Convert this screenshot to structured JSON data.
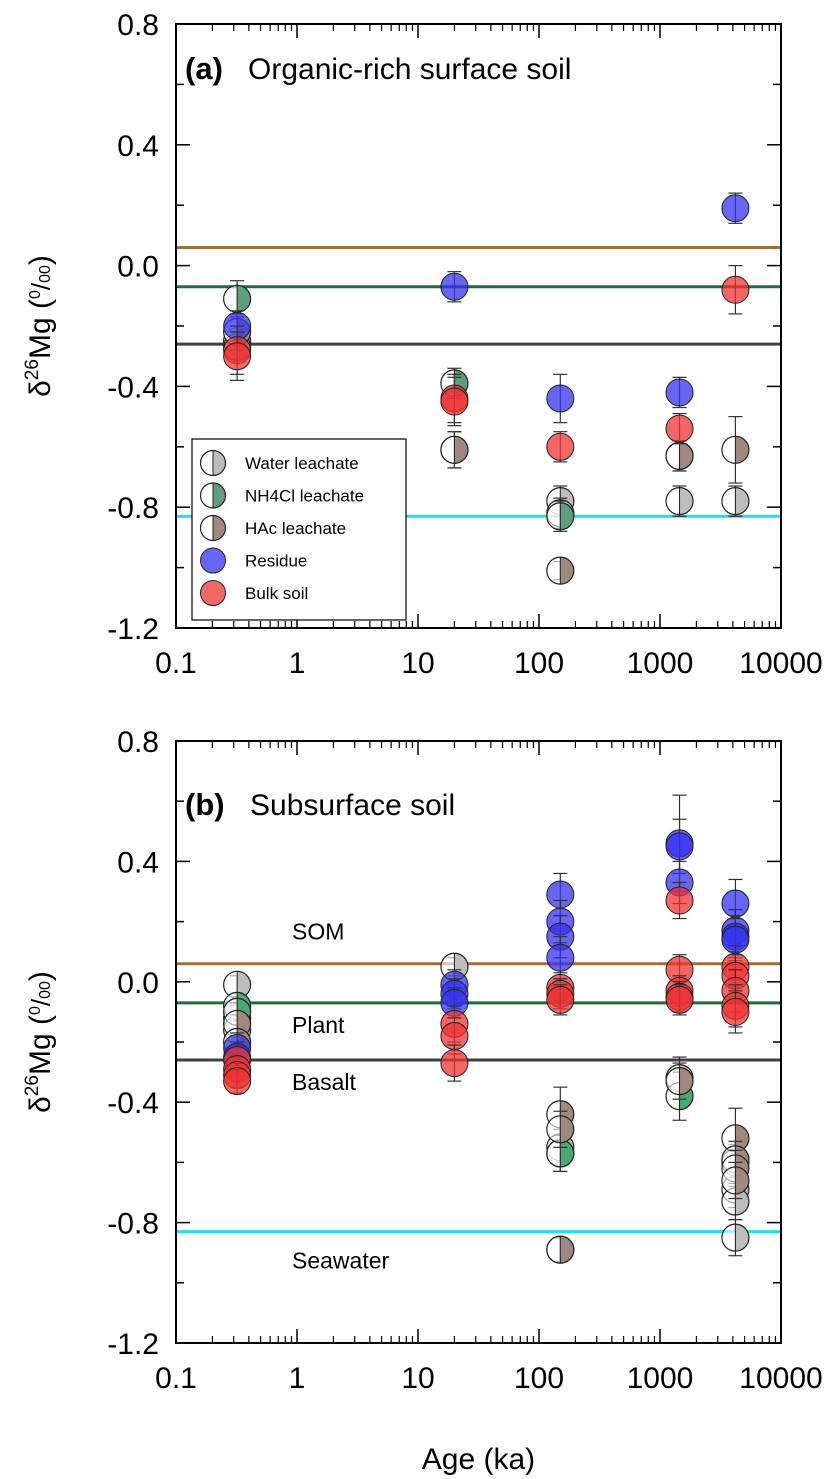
{
  "chart_data": [
    {
      "type": "scatter",
      "panel_letter": "(a)",
      "title": "Organic-rich surface soil",
      "xlabel": "",
      "ylabel": "δ26Mg (0/00)",
      "x_scale": "log",
      "xlim": [
        0.1,
        10000
      ],
      "ylim": [
        -1.2,
        0.8
      ],
      "x_ticks": [
        "0.1",
        "1",
        "10",
        "100",
        "1000",
        "10000"
      ],
      "y_ticks": [
        "0.8",
        "0.4",
        "0.0",
        "-0.4",
        "-0.8",
        "-1.2"
      ],
      "grid": false,
      "legend_position": "lower-left",
      "reference_lines": [
        {
          "id": "som",
          "label": "",
          "y": 0.06,
          "color": "#A0703A"
        },
        {
          "id": "plant",
          "label": "",
          "y": -0.07,
          "color": "#1E6E38"
        },
        {
          "id": "basalt",
          "label": "",
          "y": -0.26,
          "color": "#404040"
        },
        {
          "id": "seawater",
          "label": "",
          "y": -0.83,
          "color": "#22DDEE"
        }
      ],
      "series": [
        {
          "name": "Water leachate",
          "marker": "half",
          "color": "#BDBDBD",
          "points": [
            [
              0.32,
              -0.25,
              0.04
            ],
            [
              0.32,
              -0.27,
              0.04
            ],
            [
              20,
              -0.61,
              0.06
            ],
            [
              150,
              -0.78,
              0.05
            ],
            [
              150,
              -0.82,
              0.05
            ],
            [
              1450,
              -0.78,
              0.05
            ],
            [
              4200,
              -0.78,
              0.05
            ]
          ]
        },
        {
          "name": "NH4Cl leachate",
          "marker": "half",
          "color": "#5E9E7A",
          "points": [
            [
              0.32,
              -0.11,
              0.06
            ],
            [
              20,
              -0.39,
              0.05
            ],
            [
              150,
              -0.83,
              0.05
            ],
            [
              1450,
              -0.63,
              0.05
            ]
          ]
        },
        {
          "name": "HAc leachate",
          "marker": "half",
          "color": "#A08880",
          "points": [
            [
              0.32,
              -0.22,
              0.06
            ],
            [
              20,
              -0.61,
              0.06
            ],
            [
              150,
              -1.01,
              0.03
            ],
            [
              1450,
              -0.63,
              0.05
            ],
            [
              4200,
              -0.61,
              0.11
            ]
          ]
        },
        {
          "name": "Residue",
          "marker": "full",
          "color": "#3333EE",
          "points": [
            [
              0.32,
              -0.2,
              0.05
            ],
            [
              20,
              -0.07,
              0.05
            ],
            [
              150,
              -0.44,
              0.08
            ],
            [
              1450,
              -0.42,
              0.05
            ],
            [
              4200,
              0.19,
              0.05
            ]
          ]
        },
        {
          "name": "Bulk soil",
          "marker": "full",
          "color": "#EE3333",
          "points": [
            [
              0.32,
              -0.28,
              0.08
            ],
            [
              0.32,
              -0.3,
              0.08
            ],
            [
              20,
              -0.44,
              0.08
            ],
            [
              20,
              -0.45,
              0.08
            ],
            [
              150,
              -0.6,
              0.05
            ],
            [
              1450,
              -0.54,
              0.05
            ],
            [
              4200,
              -0.08,
              0.08
            ]
          ]
        }
      ]
    },
    {
      "type": "scatter",
      "panel_letter": "(b)",
      "title": "Subsurface soil",
      "xlabel": "Age (ka)",
      "ylabel": "δ26Mg (0/00)",
      "x_scale": "log",
      "xlim": [
        0.1,
        10000
      ],
      "ylim": [
        -1.2,
        0.8
      ],
      "x_ticks": [
        "0.1",
        "1",
        "10",
        "100",
        "1000",
        "10000"
      ],
      "y_ticks": [
        "0.8",
        "0.4",
        "0.0",
        "-0.4",
        "-0.8",
        "-1.2"
      ],
      "grid": false,
      "legend_position": "none",
      "reference_lines": [
        {
          "id": "som",
          "label": "SOM",
          "y": 0.06,
          "color": "#A0703A"
        },
        {
          "id": "plant",
          "label": "Plant",
          "y": -0.07,
          "color": "#1E6E38"
        },
        {
          "id": "basalt",
          "label": "Basalt",
          "y": -0.26,
          "color": "#404040"
        },
        {
          "id": "seawater",
          "label": "Seawater",
          "y": -0.83,
          "color": "#22DDEE"
        }
      ],
      "series": [
        {
          "name": "Water leachate",
          "marker": "half",
          "color": "#BDBDBD",
          "points": [
            [
              0.32,
              -0.01,
              0.03
            ],
            [
              0.32,
              -0.12,
              0.03
            ],
            [
              0.32,
              -0.16,
              0.03
            ],
            [
              20,
              0.05,
              0.03
            ],
            [
              150,
              -0.55,
              0.06
            ],
            [
              150,
              -0.57,
              0.06
            ],
            [
              150,
              -0.89,
              0.04
            ],
            [
              1450,
              -0.32,
              0.07
            ],
            [
              4200,
              -0.6,
              0.06
            ],
            [
              4200,
              -0.69,
              0.06
            ],
            [
              4200,
              -0.73,
              0.06
            ],
            [
              4200,
              -0.85,
              0.06
            ]
          ]
        },
        {
          "name": "NH4Cl leachate",
          "marker": "half",
          "color": "#4CA870",
          "points": [
            [
              0.32,
              -0.08,
              0.03
            ],
            [
              0.32,
              -0.1,
              0.03
            ],
            [
              150,
              -0.57,
              0.06
            ],
            [
              1450,
              -0.38,
              0.08
            ]
          ]
        },
        {
          "name": "HAc leachate",
          "marker": "half",
          "color": "#A08880",
          "points": [
            [
              0.32,
              -0.14,
              0.03
            ],
            [
              0.32,
              -0.2,
              0.03
            ],
            [
              150,
              -0.44,
              0.09
            ],
            [
              150,
              -0.49,
              0.06
            ],
            [
              150,
              -0.89,
              0.04
            ],
            [
              1450,
              -0.33,
              0.06
            ],
            [
              4200,
              -0.52,
              0.1
            ],
            [
              4200,
              -0.59,
              0.06
            ],
            [
              4200,
              -0.62,
              0.06
            ],
            [
              4200,
              -0.66,
              0.06
            ]
          ]
        },
        {
          "name": "Residue",
          "marker": "full",
          "color": "#3333EE",
          "points": [
            [
              0.32,
              -0.22,
              0.05
            ],
            [
              0.32,
              -0.25,
              0.05
            ],
            [
              20,
              -0.01,
              0.05
            ],
            [
              20,
              -0.04,
              0.05
            ],
            [
              20,
              -0.07,
              0.05
            ],
            [
              150,
              0.29,
              0.07
            ],
            [
              150,
              0.2,
              0.07
            ],
            [
              150,
              0.15,
              0.07
            ],
            [
              150,
              0.08,
              0.07
            ],
            [
              1450,
              0.46,
              0.16
            ],
            [
              1450,
              0.45,
              0.09
            ],
            [
              1450,
              0.33,
              0.07
            ],
            [
              4200,
              0.26,
              0.08
            ],
            [
              4200,
              0.17,
              0.07
            ],
            [
              4200,
              0.15,
              0.07
            ],
            [
              4200,
              0.14,
              0.07
            ]
          ]
        },
        {
          "name": "Bulk soil",
          "marker": "full",
          "color": "#EE3333",
          "points": [
            [
              0.32,
              -0.26,
              0.04
            ],
            [
              0.32,
              -0.29,
              0.04
            ],
            [
              0.32,
              -0.31,
              0.04
            ],
            [
              0.32,
              -0.33,
              0.04
            ],
            [
              20,
              -0.14,
              0.06
            ],
            [
              20,
              -0.18,
              0.06
            ],
            [
              20,
              -0.27,
              0.06
            ],
            [
              150,
              -0.02,
              0.05
            ],
            [
              150,
              -0.04,
              0.05
            ],
            [
              150,
              -0.06,
              0.05
            ],
            [
              1450,
              0.27,
              0.06
            ],
            [
              1450,
              0.04,
              0.05
            ],
            [
              1450,
              -0.03,
              0.05
            ],
            [
              1450,
              -0.05,
              0.05
            ],
            [
              1450,
              -0.06,
              0.05
            ],
            [
              4200,
              0.05,
              0.07
            ],
            [
              4200,
              0.02,
              0.07
            ],
            [
              4200,
              -0.03,
              0.07
            ],
            [
              4200,
              -0.08,
              0.07
            ],
            [
              4200,
              -0.1,
              0.07
            ]
          ]
        }
      ]
    }
  ]
}
